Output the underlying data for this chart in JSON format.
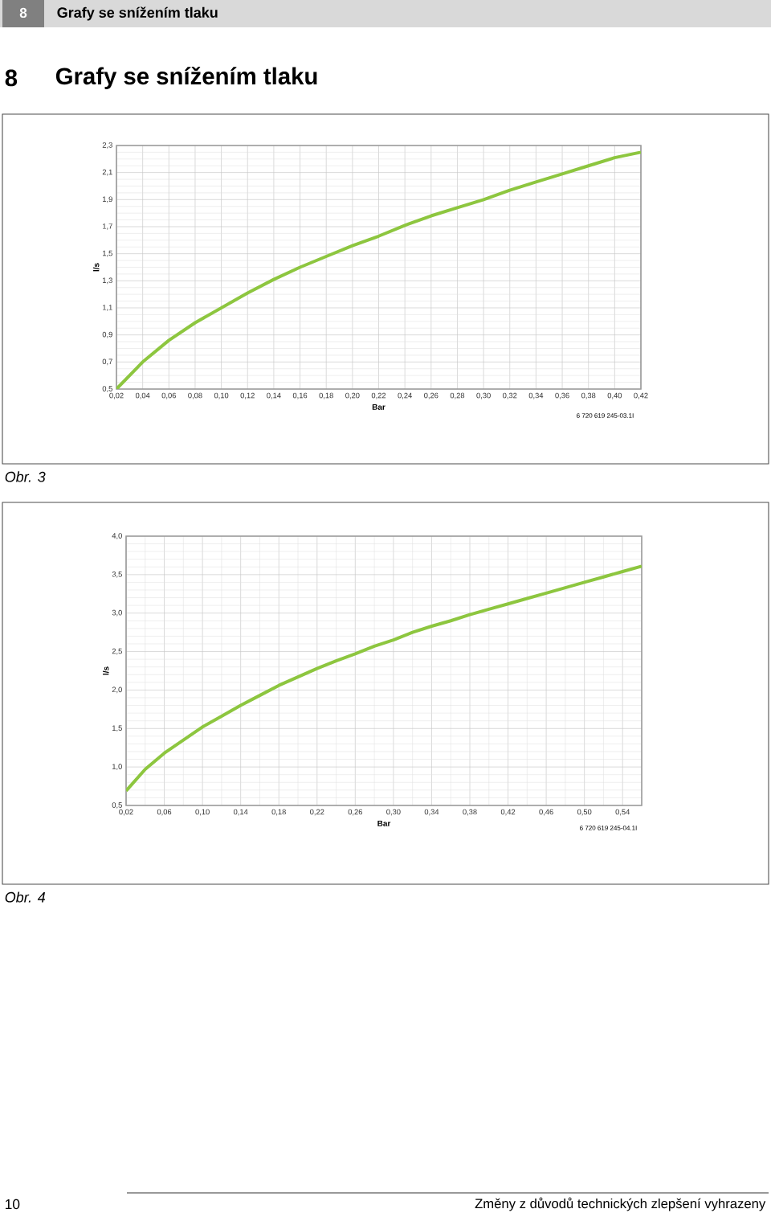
{
  "chart_data": [
    {
      "type": "line",
      "title": "Grafy se snížením tlaku",
      "xlabel": "Bar",
      "ylabel": "l/s",
      "annotations": [
        "8",
        "Grafy se snížením tlaku",
        "8",
        "6 720 619 245-03.1I",
        "Obr. 3"
      ],
      "x": [
        0.02,
        0.04,
        0.06,
        0.08,
        0.1,
        0.12,
        0.14,
        0.16,
        0.18,
        0.2,
        0.22,
        0.24,
        0.26,
        0.28,
        0.3,
        0.32,
        0.34,
        0.36,
        0.38,
        0.4,
        0.42
      ],
      "series": [
        {
          "color": "#8dc63f",
          "values": [
            0.5,
            0.7,
            0.86,
            0.99,
            1.1,
            1.21,
            1.31,
            1.4,
            1.48,
            1.56,
            1.63,
            1.71,
            1.78,
            1.84,
            1.9,
            1.97,
            2.03,
            2.09,
            2.15,
            2.21,
            2.25
          ]
        }
      ],
      "xlim": [
        0.02,
        0.42
      ],
      "ylim": [
        0.5,
        2.3
      ],
      "xticks": [
        {
          "value": 0.02,
          "label": "0,02"
        },
        {
          "value": 0.04,
          "label": "0,04"
        },
        {
          "value": 0.06,
          "label": "0,06"
        },
        {
          "value": 0.08,
          "label": "0,08"
        },
        {
          "value": 0.1,
          "label": "0,10"
        },
        {
          "value": 0.12,
          "label": "0,12"
        },
        {
          "value": 0.14,
          "label": "0,14"
        },
        {
          "value": 0.16,
          "label": "0,16"
        },
        {
          "value": 0.18,
          "label": "0,18"
        },
        {
          "value": 0.2,
          "label": "0,20"
        },
        {
          "value": 0.22,
          "label": "0,22"
        },
        {
          "value": 0.24,
          "label": "0,24"
        },
        {
          "value": 0.26,
          "label": "0,26"
        },
        {
          "value": 0.28,
          "label": "0,28"
        },
        {
          "value": 0.3,
          "label": "0,30"
        },
        {
          "value": 0.32,
          "label": "0,32"
        },
        {
          "value": 0.34,
          "label": "0,34"
        },
        {
          "value": 0.36,
          "label": "0,36"
        },
        {
          "value": 0.38,
          "label": "0,38"
        },
        {
          "value": 0.4,
          "label": "0,40"
        },
        {
          "value": 0.42,
          "label": "0,42"
        }
      ],
      "yticks": [
        {
          "value": 0.5,
          "label": "0,5"
        },
        {
          "value": 0.7,
          "label": "0,7"
        },
        {
          "value": 0.9,
          "label": "0,9"
        },
        {
          "value": 1.1,
          "label": "1,1"
        },
        {
          "value": 1.3,
          "label": "1,3"
        },
        {
          "value": 1.5,
          "label": "1,5"
        },
        {
          "value": 1.7,
          "label": "1,7"
        },
        {
          "value": 1.9,
          "label": "1,9"
        },
        {
          "value": 2.1,
          "label": "2,1"
        },
        {
          "value": 2.3,
          "label": "2,3"
        }
      ],
      "grid": true
    },
    {
      "type": "line",
      "xlabel": "Bar",
      "ylabel": "l/s",
      "annotations": [
        "6 720 619 245-04.1I",
        "Obr. 4",
        "10",
        "Změny z důvodů technických zlepšení vyhrazeny"
      ],
      "x": [
        0.02,
        0.04,
        0.06,
        0.08,
        0.1,
        0.12,
        0.14,
        0.16,
        0.18,
        0.2,
        0.22,
        0.24,
        0.26,
        0.28,
        0.3,
        0.32,
        0.34,
        0.36,
        0.38,
        0.4,
        0.42,
        0.44,
        0.46,
        0.48,
        0.5,
        0.52,
        0.54,
        0.56
      ],
      "series": [
        {
          "color": "#8dc63f",
          "values": [
            0.69,
            0.97,
            1.18,
            1.35,
            1.52,
            1.66,
            1.8,
            1.93,
            2.06,
            2.17,
            2.28,
            2.38,
            2.47,
            2.57,
            2.65,
            2.75,
            2.83,
            2.9,
            2.98,
            3.05,
            3.12,
            3.19,
            3.26,
            3.33,
            3.4,
            3.47,
            3.54,
            3.61
          ]
        }
      ],
      "xlim": [
        0.02,
        0.56
      ],
      "ylim": [
        0.5,
        4.0
      ],
      "xticks": [
        {
          "value": 0.02,
          "label": "0,02"
        },
        {
          "value": 0.06,
          "label": "0,06"
        },
        {
          "value": 0.1,
          "label": "0,10"
        },
        {
          "value": 0.14,
          "label": "0,14"
        },
        {
          "value": 0.18,
          "label": "0,18"
        },
        {
          "value": 0.22,
          "label": "0,22"
        },
        {
          "value": 0.26,
          "label": "0,26"
        },
        {
          "value": 0.3,
          "label": "0,30"
        },
        {
          "value": 0.34,
          "label": "0,34"
        },
        {
          "value": 0.38,
          "label": "0,38"
        },
        {
          "value": 0.42,
          "label": "0,42"
        },
        {
          "value": 0.46,
          "label": "0,46"
        },
        {
          "value": 0.5,
          "label": "0,50"
        },
        {
          "value": 0.54,
          "label": "0,54"
        }
      ],
      "yticks": [
        {
          "value": 0.5,
          "label": "0,5"
        },
        {
          "value": 1.0,
          "label": "1,0"
        },
        {
          "value": 1.5,
          "label": "1,5"
        },
        {
          "value": 2.0,
          "label": "2,0"
        },
        {
          "value": 2.5,
          "label": "2,5"
        },
        {
          "value": 3.0,
          "label": "3,0"
        },
        {
          "value": 3.5,
          "label": "3,5"
        },
        {
          "value": 4.0,
          "label": "4,0"
        }
      ],
      "grid": true
    }
  ]
}
